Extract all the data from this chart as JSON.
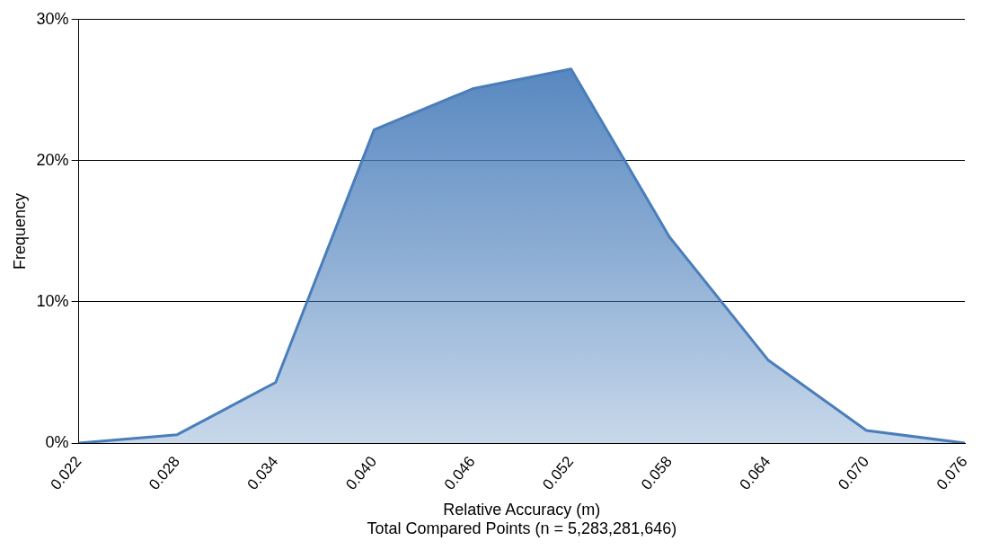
{
  "chart_data": {
    "type": "area",
    "xlabel": "Relative Accuracy (m)",
    "ylabel": "Frequency",
    "annotations": [
      "Total Compared Points (n = 5,283,281,646)"
    ],
    "categories": [
      "0.022",
      "0.028",
      "0.034",
      "0.040",
      "0.046",
      "0.052",
      "0.058",
      "0.064",
      "0.070",
      "0.076"
    ],
    "series": [
      {
        "color": "#4a7ebb",
        "values": [
          0,
          0.6,
          4.3,
          22.2,
          25.1,
          26.5,
          14.6,
          5.9,
          0.9,
          0
        ]
      }
    ],
    "ylim": [
      0,
      30
    ],
    "yticks": [
      {
        "value": 0,
        "label": "0%"
      },
      {
        "value": 10,
        "label": "10%"
      },
      {
        "value": 20,
        "label": "20%"
      },
      {
        "value": 30,
        "label": "30%"
      }
    ],
    "grid": "y",
    "legend": false,
    "marker": "none",
    "line_style": "solid"
  }
}
